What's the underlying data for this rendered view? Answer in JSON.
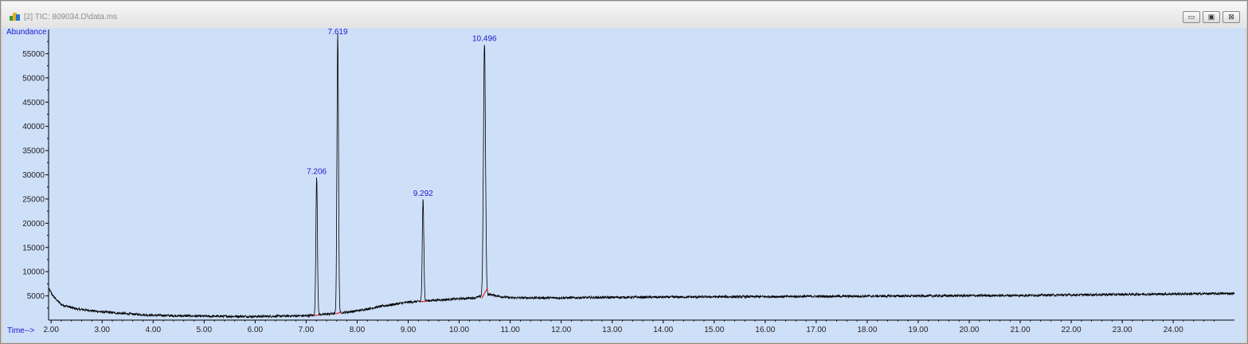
{
  "window": {
    "title": "[2] TIC: 809034.D\\data.ms",
    "icon": "chromatogram-app-icon",
    "controls": [
      {
        "name": "minimize-button",
        "glyph": "▭"
      },
      {
        "name": "restore-button",
        "glyph": "▣"
      },
      {
        "name": "close-button",
        "glyph": "⊠"
      }
    ]
  },
  "colors": {
    "plot_background": "#cedff8",
    "trace": "#000000",
    "peak_labels": "#1a1acc",
    "baseline_marks": "#e0262c",
    "axis_text": "#222222",
    "axis_titles": "#1a1acc"
  },
  "chart_data": {
    "type": "line",
    "ylabel": "Abundance",
    "xlabel": "Time-->",
    "xlim": [
      1.95,
      25.2
    ],
    "ylim": [
      0,
      60000
    ],
    "x_ticks": [
      2,
      3,
      4,
      5,
      6,
      7,
      8,
      9,
      10,
      11,
      12,
      13,
      14,
      15,
      16,
      17,
      18,
      19,
      20,
      21,
      22,
      23,
      24
    ],
    "x_tick_labels": [
      "2.00",
      "3.00",
      "4.00",
      "5.00",
      "6.00",
      "7.00",
      "8.00",
      "9.00",
      "10.00",
      "11.00",
      "12.00",
      "13.00",
      "14.00",
      "15.00",
      "16.00",
      "17.00",
      "18.00",
      "19.00",
      "20.00",
      "21.00",
      "22.00",
      "23.00",
      "24.00"
    ],
    "y_ticks": [
      5000,
      10000,
      15000,
      20000,
      25000,
      30000,
      35000,
      40000,
      45000,
      50000,
      55000
    ],
    "y_tick_labels": [
      "5000",
      "10000",
      "15000",
      "20000",
      "25000",
      "30000",
      "35000",
      "40000",
      "45000",
      "50000",
      "55000"
    ],
    "grid": false,
    "baseline": [
      [
        1.95,
        6500
      ],
      [
        2.05,
        4800
      ],
      [
        2.2,
        3200
      ],
      [
        2.5,
        2300
      ],
      [
        3.0,
        1700
      ],
      [
        3.5,
        1300
      ],
      [
        4.0,
        1000
      ],
      [
        5.0,
        800
      ],
      [
        6.0,
        750
      ],
      [
        7.0,
        900
      ],
      [
        7.5,
        1300
      ],
      [
        8.0,
        1900
      ],
      [
        8.5,
        2900
      ],
      [
        9.0,
        3700
      ],
      [
        9.5,
        4100
      ],
      [
        10.0,
        4400
      ],
      [
        10.3,
        4600
      ],
      [
        10.6,
        5300
      ],
      [
        10.8,
        4900
      ],
      [
        11.0,
        4600
      ],
      [
        12.0,
        4600
      ],
      [
        13.0,
        4700
      ],
      [
        14.0,
        4750
      ],
      [
        15.0,
        4800
      ],
      [
        16.0,
        4850
      ],
      [
        17.0,
        4900
      ],
      [
        18.0,
        4950
      ],
      [
        19.0,
        5000
      ],
      [
        20.0,
        5050
      ],
      [
        21.0,
        5100
      ],
      [
        22.0,
        5200
      ],
      [
        23.0,
        5300
      ],
      [
        24.0,
        5400
      ],
      [
        25.2,
        5500
      ]
    ],
    "peaks": [
      {
        "rt": 7.206,
        "label": "7.206",
        "height": 29500,
        "width": 0.03
      },
      {
        "rt": 7.619,
        "label": "7.619",
        "height": 59500,
        "width": 0.03
      },
      {
        "rt": 9.292,
        "label": "9.292",
        "height": 25000,
        "width": 0.03
      },
      {
        "rt": 10.496,
        "label": "10.496",
        "height": 57000,
        "width": 0.04
      }
    ],
    "integration_marks": [
      {
        "from": [
          7.15,
          900
        ],
        "to": [
          7.26,
          1100
        ]
      },
      {
        "from": [
          7.57,
          1300
        ],
        "to": [
          7.68,
          1600
        ]
      },
      {
        "from": [
          9.24,
          3800
        ],
        "to": [
          9.36,
          3900
        ]
      },
      {
        "from": [
          10.44,
          4500
        ],
        "to": [
          10.56,
          6700
        ]
      }
    ]
  }
}
